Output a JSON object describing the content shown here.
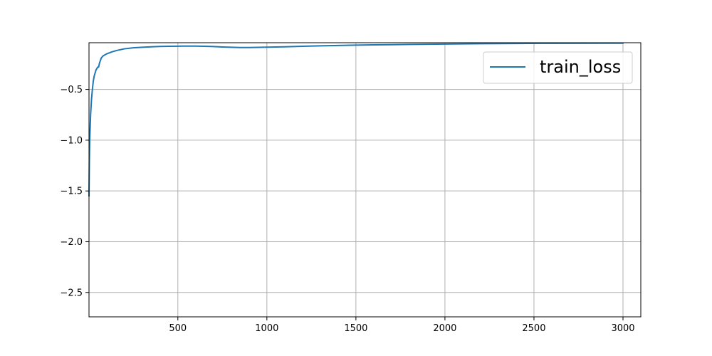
{
  "chart_data": {
    "type": "line",
    "title": "",
    "xlabel": "",
    "ylabel": "",
    "xlim": [
      1,
      3100
    ],
    "ylim": [
      -2.74,
      -0.04
    ],
    "x_ticks": [
      500,
      1000,
      1500,
      2000,
      2500,
      3000
    ],
    "x_tick_labels": [
      "500",
      "1000",
      "1500",
      "2000",
      "2500",
      "3000"
    ],
    "y_ticks": [
      -0.5,
      -1.0,
      -1.5,
      -2.0,
      -2.5
    ],
    "y_tick_labels": [
      "−0.5",
      "−1.0",
      "−1.5",
      "−2.0",
      "−2.5"
    ],
    "grid": true,
    "legend_position": "top-right",
    "colors": {
      "series": "#1f77b4",
      "grid": "#b0b0b0",
      "axes": "#000000"
    },
    "series": [
      {
        "name": "train_loss",
        "x": [
          1,
          3,
          5,
          8,
          10,
          15,
          20,
          25,
          30,
          40,
          50,
          55,
          60,
          70,
          80,
          100,
          130,
          160,
          200,
          250,
          300,
          350,
          400,
          450,
          500,
          550,
          600,
          650,
          700,
          750,
          800,
          850,
          900,
          1000,
          1100,
          1200,
          1300,
          1400,
          1500,
          1600,
          1700,
          1800,
          1900,
          2000,
          2200,
          2400,
          2600,
          2800,
          3000
        ],
        "values": [
          -1.55,
          -1.2,
          -1.0,
          -0.85,
          -0.75,
          -0.6,
          -0.5,
          -0.42,
          -0.37,
          -0.31,
          -0.28,
          -0.28,
          -0.24,
          -0.19,
          -0.17,
          -0.15,
          -0.13,
          -0.115,
          -0.1,
          -0.09,
          -0.085,
          -0.08,
          -0.077,
          -0.075,
          -0.074,
          -0.073,
          -0.073,
          -0.075,
          -0.078,
          -0.082,
          -0.085,
          -0.087,
          -0.087,
          -0.084,
          -0.08,
          -0.075,
          -0.071,
          -0.067,
          -0.064,
          -0.061,
          -0.059,
          -0.057,
          -0.055,
          -0.053,
          -0.05,
          -0.048,
          -0.046,
          -0.045,
          -0.044
        ]
      }
    ]
  }
}
